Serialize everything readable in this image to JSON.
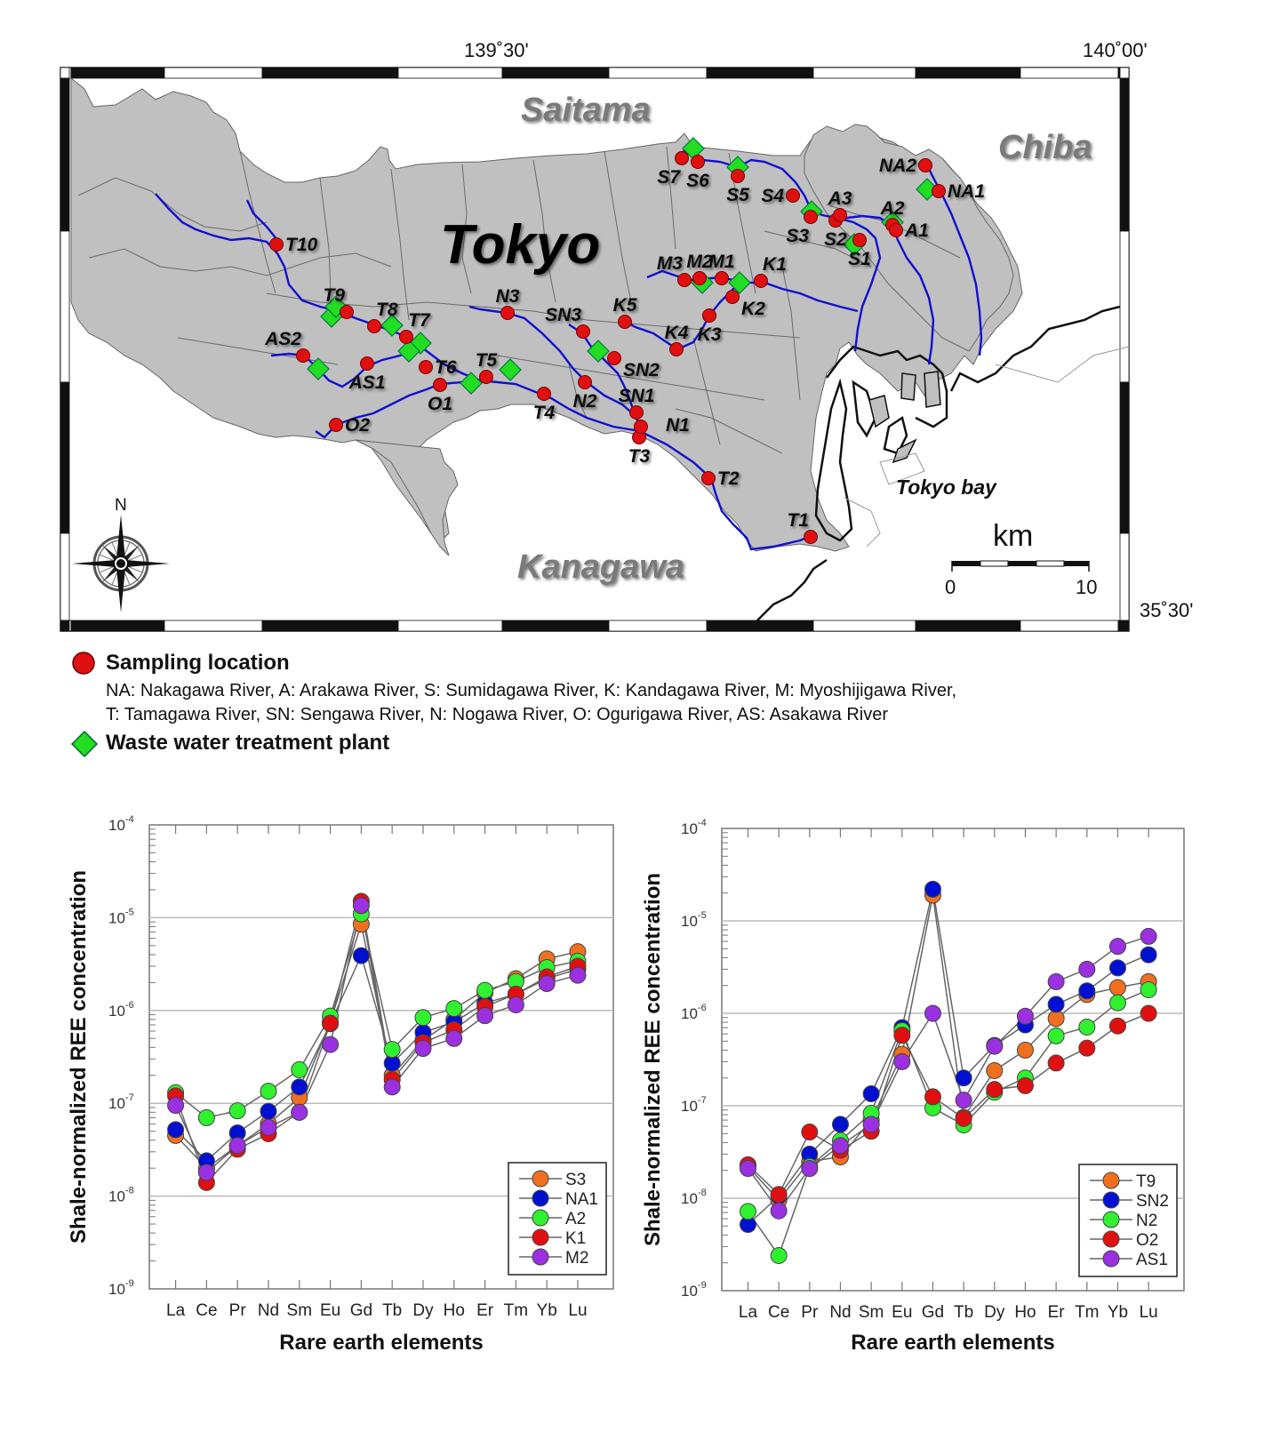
{
  "map": {
    "longitude_labels": [
      "139˚30'",
      "140˚00'"
    ],
    "latitude_label": "35˚30'",
    "region_labels": {
      "saitama": "Saitama",
      "chiba": "Chiba",
      "tokyo": "Tokyo",
      "kanagawa": "Kanagawa",
      "tokyo_bay": "Tokyo bay"
    },
    "compass_label": "N",
    "scale_bar": {
      "unit": "km",
      "start": "0",
      "end": "10"
    },
    "sampling_sites": [
      "T10",
      "T9",
      "T8",
      "T7",
      "T6",
      "T5",
      "T4",
      "T3",
      "T2",
      "T1",
      "AS2",
      "AS1",
      "O1",
      "O2",
      "N3",
      "N2",
      "N1",
      "SN3",
      "SN2",
      "SN1",
      "K5",
      "K4",
      "K3",
      "K2",
      "K1",
      "M3",
      "M2",
      "M1",
      "S7",
      "S6",
      "S5",
      "S4",
      "S3",
      "S2",
      "S1",
      "A3",
      "A2",
      "A1",
      "NA2",
      "NA1"
    ],
    "colors": {
      "land": "#c0c0c0",
      "river": "#1010d0",
      "site": "#e01010",
      "plant": "#22dd22"
    }
  },
  "legend": {
    "sampling_title": "Sampling location",
    "sampling_desc_line1": "NA: Nakagawa River, A: Arakawa River, S: Sumidagawa River, K: Kandagawa River, M: Myoshijigawa River,",
    "sampling_desc_line2": "T: Tamagawa River, SN: Sengawa River, N: Nogawa River, O: Ogurigawa River, AS: Asakawa River",
    "plant_title": "Waste water treatment plant"
  },
  "chart_data": [
    {
      "type": "line",
      "title": "",
      "xlabel": "Rare earth elements",
      "ylabel": "Shale-normalized REE concentration",
      "yscale": "log",
      "ylim": [
        1e-09,
        0.0001
      ],
      "ytick_labels": [
        {
          "base": "10",
          "exp": "-4"
        },
        {
          "base": "10",
          "exp": "-5"
        },
        {
          "base": "10",
          "exp": "-6"
        },
        {
          "base": "10",
          "exp": "-7"
        },
        {
          "base": "10",
          "exp": "-8"
        },
        {
          "base": "10",
          "exp": "-9"
        }
      ],
      "grid": true,
      "legend_position": "bottom-right",
      "categories": [
        "La",
        "Ce",
        "Pr",
        "Nd",
        "Sm",
        "Eu",
        "Gd",
        "Tb",
        "Dy",
        "Ho",
        "Er",
        "Tm",
        "Yb",
        "Lu"
      ],
      "series": [
        {
          "name": "S3",
          "color": "#f07020",
          "values": [
            4.5e-08,
            2e-08,
            3.5e-08,
            6e-08,
            1.15e-07,
            7.5e-07,
            8.5e-06,
            2e-07,
            4.8e-07,
            8e-07,
            1.55e-06,
            2.2e-06,
            3.6e-06,
            4.3e-06
          ]
        },
        {
          "name": "NA1",
          "color": "#0010d0",
          "values": [
            5.2e-08,
            2.4e-08,
            4.8e-08,
            8.2e-08,
            1.5e-07,
            7.2e-07,
            3.9e-06,
            2.7e-07,
            5.8e-07,
            7.5e-07,
            1.2e-06,
            1.5e-06,
            2.2e-06,
            2.8e-06
          ]
        },
        {
          "name": "A2",
          "color": "#30f030",
          "values": [
            1.3e-07,
            7e-08,
            8.3e-08,
            1.35e-07,
            2.3e-07,
            8.7e-07,
            1.1e-05,
            3.8e-07,
            8.4e-07,
            1.05e-06,
            1.65e-06,
            2.05e-06,
            2.9e-06,
            3.4e-06
          ]
        },
        {
          "name": "K1",
          "color": "#e01010",
          "values": [
            1.2e-07,
            1.4e-08,
            3.2e-08,
            4.7e-08,
            8e-08,
            7.3e-07,
            1.5e-05,
            1.8e-07,
            4.5e-07,
            6.2e-07,
            1.1e-06,
            1.5e-06,
            2.3e-06,
            3e-06
          ]
        },
        {
          "name": "M2",
          "color": "#9a30e0",
          "values": [
            9.5e-08,
            1.8e-08,
            3.5e-08,
            5.5e-08,
            8e-08,
            4.3e-07,
            1.35e-05,
            1.5e-07,
            3.9e-07,
            5e-07,
            8.8e-07,
            1.15e-06,
            1.95e-06,
            2.4e-06
          ]
        }
      ]
    },
    {
      "type": "line",
      "title": "",
      "xlabel": "Rare earth elements",
      "ylabel": "Shale-normalized REE concentration",
      "yscale": "log",
      "ylim": [
        1e-09,
        0.0001
      ],
      "ytick_labels": [
        {
          "base": "10",
          "exp": "-4"
        },
        {
          "base": "10",
          "exp": "-5"
        },
        {
          "base": "10",
          "exp": "-6"
        },
        {
          "base": "10",
          "exp": "-7"
        },
        {
          "base": "10",
          "exp": "-8"
        },
        {
          "base": "10",
          "exp": "-9"
        }
      ],
      "grid": true,
      "legend_position": "bottom-right",
      "categories": [
        "La",
        "Ce",
        "Pr",
        "Nd",
        "Sm",
        "Eu",
        "Gd",
        "Tb",
        "Dy",
        "Ho",
        "Er",
        "Tm",
        "Yb",
        "Lu"
      ],
      "series": [
        {
          "name": "T9",
          "color": "#f07020",
          "values": [
            2.2e-08,
            9.5e-09,
            2.5e-08,
            2.8e-08,
            7e-08,
            3.6e-07,
            1.9e-05,
            7.5e-08,
            2.4e-07,
            4e-07,
            8.8e-07,
            1.6e-06,
            1.9e-06,
            2.2e-06
          ]
        },
        {
          "name": "SN2",
          "color": "#0010d0",
          "values": [
            5.2e-09,
            1.05e-08,
            3e-08,
            6.3e-08,
            1.35e-07,
            7e-07,
            2.2e-05,
            2e-07,
            4.5e-07,
            7.5e-07,
            1.25e-06,
            1.75e-06,
            3.1e-06,
            4.3e-06
          ]
        },
        {
          "name": "N2",
          "color": "#30f030",
          "values": [
            7.2e-09,
            2.4e-09,
            2.2e-08,
            4.2e-08,
            8.3e-08,
            6.5e-07,
            9.5e-08,
            6.2e-08,
            1.4e-07,
            2e-07,
            5.7e-07,
            7.1e-07,
            1.3e-06,
            1.8e-06
          ]
        },
        {
          "name": "O2",
          "color": "#e01010",
          "values": [
            2.3e-08,
            1.1e-08,
            5.2e-08,
            3.3e-08,
            5.3e-08,
            5.8e-07,
            1.25e-07,
            7.3e-08,
            1.5e-07,
            1.65e-07,
            2.9e-07,
            4.2e-07,
            7.3e-07,
            1e-06
          ]
        },
        {
          "name": "AS1",
          "color": "#9a30e0",
          "values": [
            2.1e-08,
            7.3e-09,
            2.1e-08,
            3.7e-08,
            6.3e-08,
            3e-07,
            1e-06,
            1.15e-07,
            4.4e-07,
            9.3e-07,
            2.2e-06,
            3e-06,
            5.3e-06,
            6.8e-06
          ]
        }
      ]
    }
  ]
}
